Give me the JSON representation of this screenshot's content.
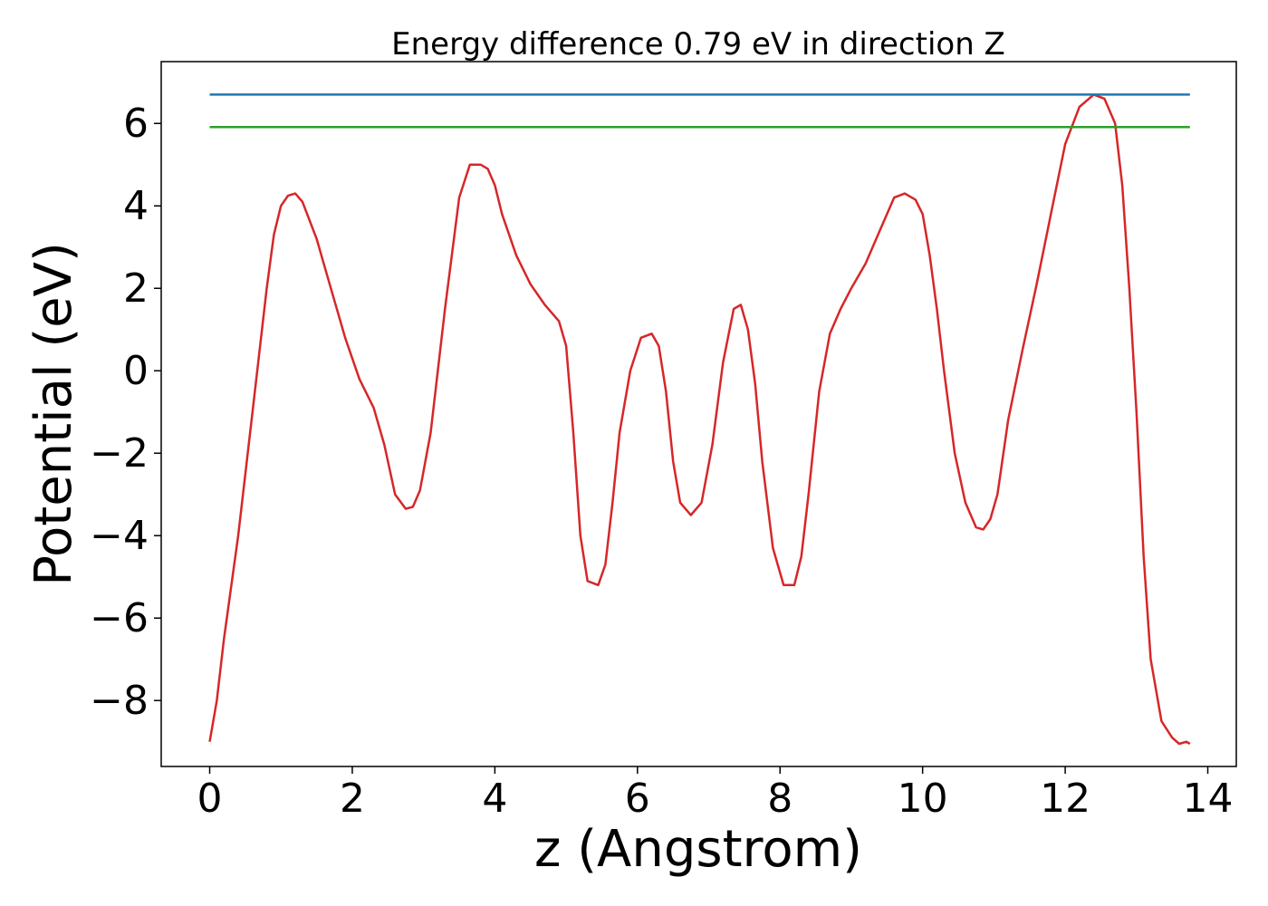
{
  "chart_data": {
    "type": "line",
    "title": "Energy difference 0.79 eV in direction Z",
    "xlabel": "z (Angstrom)",
    "ylabel": "Potential (eV)",
    "xlim": [
      -0.68,
      14.4
    ],
    "ylim": [
      -9.6,
      7.5
    ],
    "xticks": [
      0,
      2,
      4,
      6,
      8,
      10,
      12,
      14
    ],
    "yticks": [
      -8,
      -6,
      -4,
      -2,
      0,
      2,
      4,
      6
    ],
    "xtick_labels": [
      "0",
      "2",
      "4",
      "6",
      "8",
      "10",
      "12",
      "14"
    ],
    "ytick_labels": [
      "−8",
      "−6",
      "−4",
      "−2",
      "0",
      "2",
      "4",
      "6"
    ],
    "grid": false,
    "series": [
      {
        "color": "#d62728",
        "x": [
          0,
          0.1,
          0.2,
          0.4,
          0.6,
          0.8,
          0.9,
          1.0,
          1.1,
          1.2,
          1.3,
          1.5,
          1.7,
          1.9,
          2.1,
          2.3,
          2.45,
          2.6,
          2.75,
          2.85,
          2.95,
          3.1,
          3.3,
          3.5,
          3.65,
          3.8,
          3.9,
          4.0,
          4.1,
          4.3,
          4.5,
          4.7,
          4.9,
          5.0,
          5.1,
          5.2,
          5.3,
          5.45,
          5.55,
          5.65,
          5.75,
          5.9,
          6.05,
          6.2,
          6.3,
          6.4,
          6.5,
          6.6,
          6.75,
          6.9,
          7.05,
          7.2,
          7.35,
          7.45,
          7.55,
          7.65,
          7.75,
          7.9,
          8.05,
          8.2,
          8.3,
          8.4,
          8.55,
          8.7,
          8.85,
          9.0,
          9.2,
          9.4,
          9.6,
          9.75,
          9.9,
          10.0,
          10.1,
          10.2,
          10.3,
          10.45,
          10.6,
          10.75,
          10.85,
          10.95,
          11.05,
          11.2,
          11.4,
          11.6,
          11.8,
          12.0,
          12.2,
          12.4,
          12.55,
          12.7,
          12.8,
          12.9,
          13.0,
          13.1,
          13.2,
          13.35,
          13.5,
          13.6,
          13.7,
          13.75
        ],
        "y": [
          -9.0,
          -8.0,
          -6.5,
          -4.0,
          -1.0,
          2.0,
          3.3,
          4.0,
          4.25,
          4.3,
          4.1,
          3.2,
          2.0,
          0.8,
          -0.2,
          -0.9,
          -1.8,
          -3.0,
          -3.35,
          -3.3,
          -2.9,
          -1.5,
          1.5,
          4.2,
          5.0,
          5.0,
          4.9,
          4.5,
          3.8,
          2.8,
          2.1,
          1.6,
          1.2,
          0.6,
          -1.5,
          -4.0,
          -5.1,
          -5.2,
          -4.7,
          -3.2,
          -1.5,
          0.0,
          0.8,
          0.9,
          0.6,
          -0.5,
          -2.2,
          -3.2,
          -3.5,
          -3.2,
          -1.8,
          0.2,
          1.5,
          1.6,
          1.0,
          -0.3,
          -2.2,
          -4.3,
          -5.2,
          -5.2,
          -4.5,
          -3.0,
          -0.5,
          0.9,
          1.5,
          2.0,
          2.6,
          3.4,
          4.2,
          4.3,
          4.15,
          3.8,
          2.8,
          1.5,
          0.0,
          -2.0,
          -3.2,
          -3.8,
          -3.85,
          -3.6,
          -3.0,
          -1.2,
          0.5,
          2.1,
          3.8,
          5.5,
          6.4,
          6.7,
          6.6,
          6.0,
          4.5,
          2.0,
          -1.0,
          -4.5,
          -7.0,
          -8.5,
          -8.9,
          -9.05,
          -9.0,
          -9.05
        ]
      },
      {
        "color": "#1f77b4",
        "x": [
          0,
          13.75
        ],
        "y": [
          6.7,
          6.7
        ]
      },
      {
        "color": "#2ca02c",
        "x": [
          0,
          13.75
        ],
        "y": [
          5.91,
          5.91
        ]
      }
    ]
  }
}
